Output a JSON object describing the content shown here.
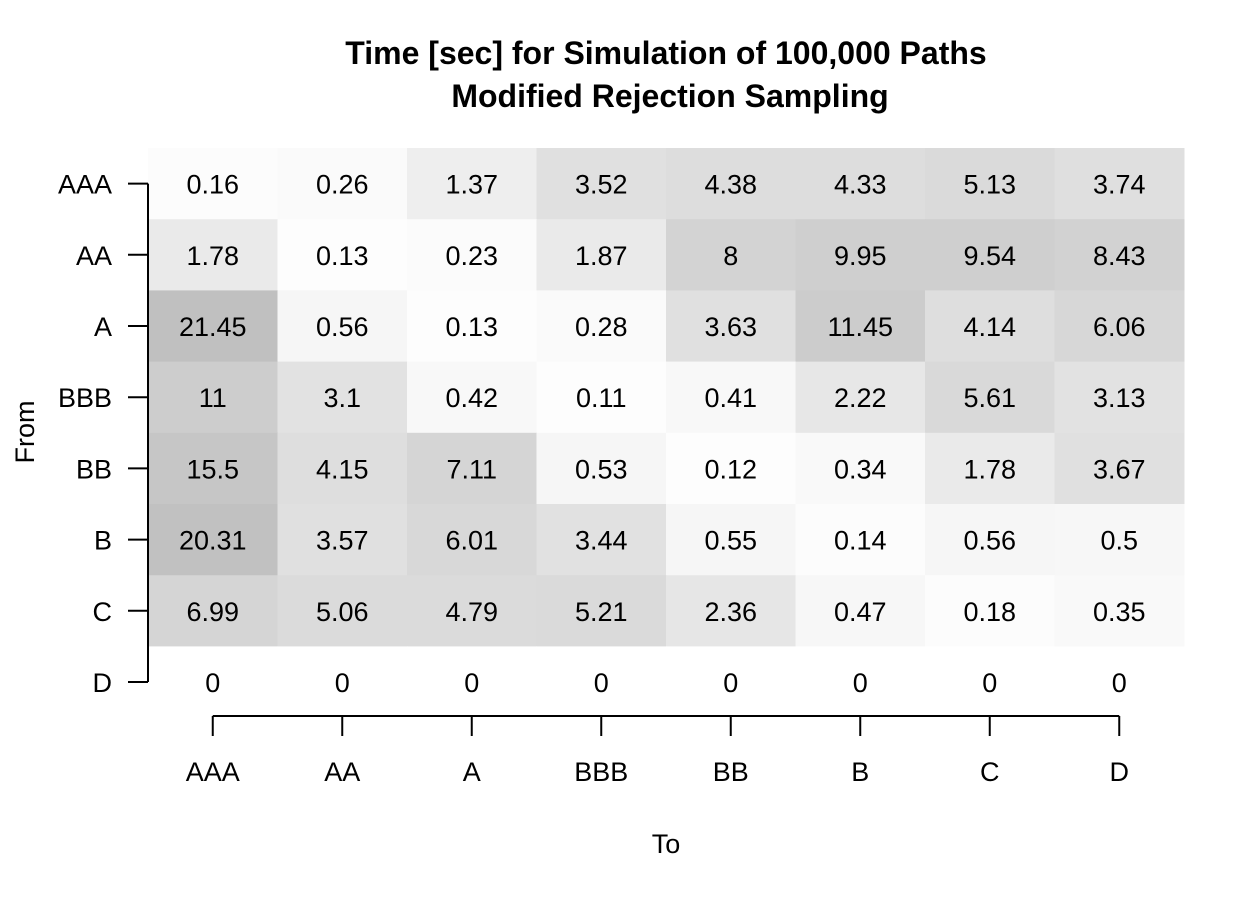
{
  "chart_data": {
    "type": "heatmap",
    "title": "Time [sec] for Simulation of 100,000 Paths",
    "subtitle": "Modified Rejection Sampling",
    "xlabel": "To",
    "ylabel": "From",
    "x_categories": [
      "AAA",
      "AA",
      "A",
      "BBB",
      "BB",
      "B",
      "C",
      "D"
    ],
    "y_categories": [
      "AAA",
      "AA",
      "A",
      "BBB",
      "BB",
      "B",
      "C",
      "D"
    ],
    "values": [
      [
        "0.16",
        "0.26",
        "1.37",
        "3.52",
        "4.38",
        "4.33",
        "5.13",
        "3.74"
      ],
      [
        "1.78",
        "0.13",
        "0.23",
        "1.87",
        "8",
        "9.95",
        "9.54",
        "8.43"
      ],
      [
        "21.45",
        "0.56",
        "0.13",
        "0.28",
        "3.63",
        "11.45",
        "4.14",
        "6.06"
      ],
      [
        "11",
        "3.1",
        "0.42",
        "0.11",
        "0.41",
        "2.22",
        "5.61",
        "3.13"
      ],
      [
        "15.5",
        "4.15",
        "7.11",
        "0.53",
        "0.12",
        "0.34",
        "1.78",
        "3.67"
      ],
      [
        "20.31",
        "3.57",
        "6.01",
        "3.44",
        "0.55",
        "0.14",
        "0.56",
        "0.5"
      ],
      [
        "6.99",
        "5.06",
        "4.79",
        "5.21",
        "2.36",
        "0.47",
        "0.18",
        "0.35"
      ],
      [
        "0",
        "0",
        "0",
        "0",
        "0",
        "0",
        "0",
        "0"
      ]
    ],
    "color_scale": "grayscale (white = low, darker gray = high)",
    "grid": false
  }
}
